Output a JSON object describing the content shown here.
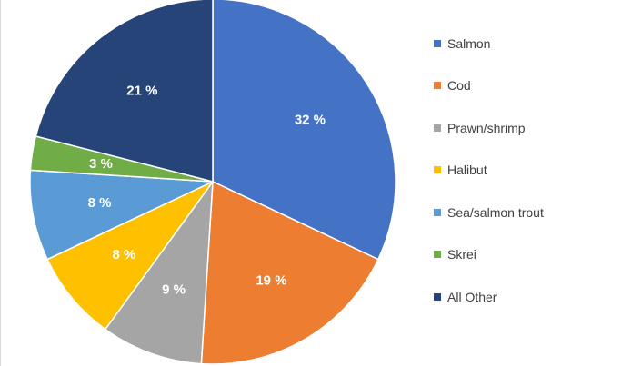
{
  "chart_data": {
    "type": "pie",
    "title": "",
    "legend_position": "right",
    "start": "top",
    "direction": "clockwise",
    "slices": [
      {
        "name": "Salmon",
        "value": 32,
        "label": "32 %",
        "color": "#4472C4"
      },
      {
        "name": "Cod",
        "value": 19,
        "label": "19 %",
        "color": "#ED7D31"
      },
      {
        "name": "Prawn/shrimp",
        "value": 9,
        "label": "9 %",
        "color": "#A5A5A5"
      },
      {
        "name": "Halibut",
        "value": 8,
        "label": "8 %",
        "color": "#FFC000"
      },
      {
        "name": "Sea/salmon trout",
        "value": 8,
        "label": "8 %",
        "color": "#5B9BD5"
      },
      {
        "name": "Skrei",
        "value": 3,
        "label": "3 %",
        "color": "#70AD47"
      },
      {
        "name": "All Other",
        "value": 21,
        "label": "21 %",
        "color": "#264478"
      }
    ]
  }
}
